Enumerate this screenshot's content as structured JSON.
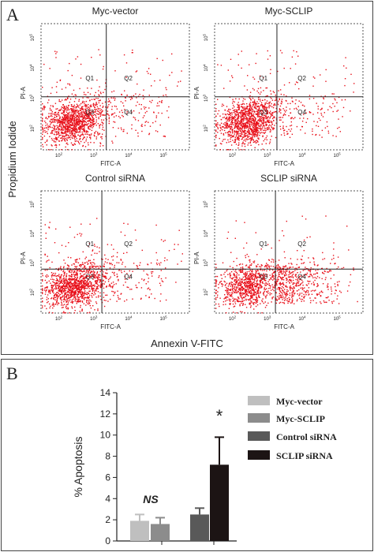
{
  "panel_a": {
    "label": "A",
    "y_axis_title": "Propidium Iodide",
    "x_axis_title": "Annexin V-FITC",
    "plot_xlabel": "FITC-A",
    "plot_ylabel": "PI-A",
    "quadrant_labels": [
      "Q1",
      "Q2",
      "Q3",
      "Q4"
    ],
    "tick_exponents": [
      "2",
      "3",
      "4",
      "5"
    ],
    "tick_base": "10",
    "plots": [
      {
        "title": "Myc-vector"
      },
      {
        "title": "Myc-SCLIP"
      },
      {
        "title": "Control siRNA"
      },
      {
        "title": "SCLIP siRNA"
      }
    ]
  },
  "panel_b": {
    "label": "B",
    "ns_label": "NS",
    "star_label": "*"
  },
  "colors": {
    "dots": "#e8101a",
    "myc_vector": "#bfbfbf",
    "myc_sclip": "#8c8c8c",
    "control_sirna": "#595959",
    "sclip_sirna": "#1c1414"
  },
  "chart_data": {
    "type": "bar",
    "ylabel": "% Apoptosis",
    "ylim": [
      0,
      14
    ],
    "yticks": [
      "0",
      "2",
      "4",
      "6",
      "8",
      "10",
      "12",
      "14"
    ],
    "legend_position": "right",
    "series": [
      {
        "name": "Myc-vector",
        "value": 1.9,
        "error": 0.6
      },
      {
        "name": "Myc-SCLIP",
        "value": 1.6,
        "error": 0.6
      },
      {
        "name": "Control siRNA",
        "value": 2.5,
        "error": 0.6
      },
      {
        "name": "SCLIP siRNA",
        "value": 7.2,
        "error": 2.6
      }
    ]
  }
}
